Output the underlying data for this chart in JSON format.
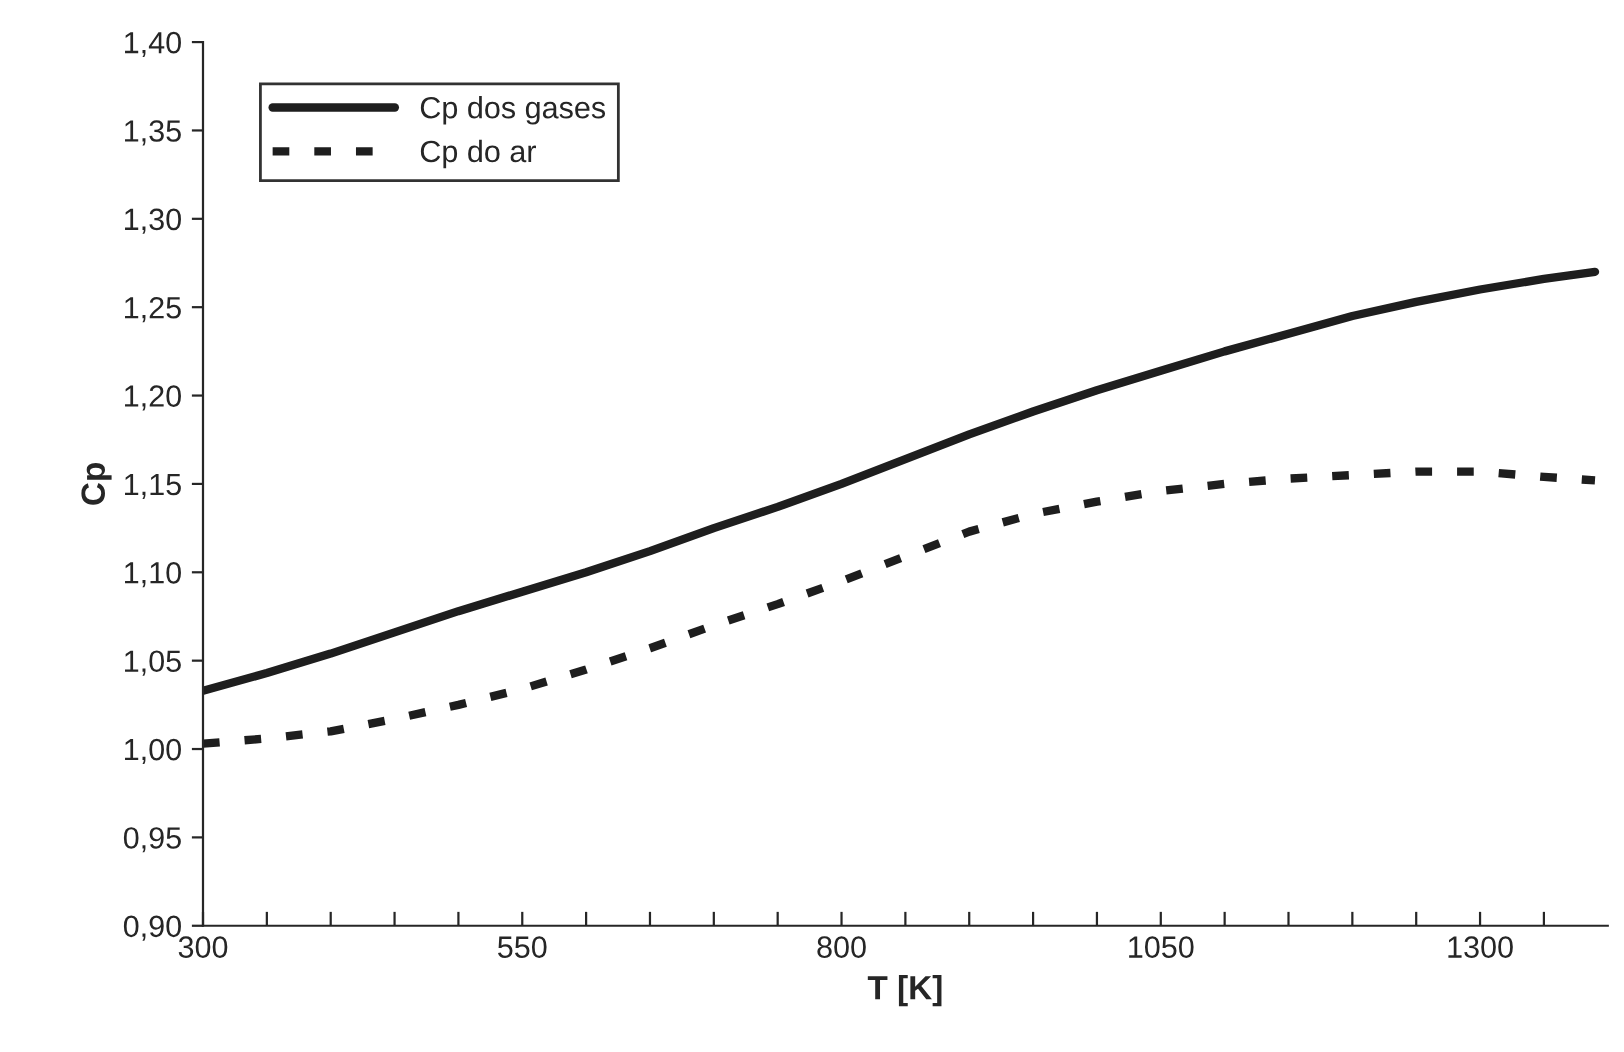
{
  "chart_data": {
    "type": "line",
    "xlabel": "T [K]",
    "ylabel": "Cp",
    "x": [
      300,
      350,
      400,
      450,
      500,
      550,
      600,
      650,
      700,
      750,
      800,
      850,
      900,
      950,
      1000,
      1050,
      1100,
      1150,
      1200,
      1250,
      1300,
      1350,
      1390
    ],
    "series": [
      {
        "name": "Cp dos gases",
        "color": "#1e1e1e",
        "line_style": "solid",
        "values": [
          1.033,
          1.043,
          1.054,
          1.066,
          1.078,
          1.089,
          1.1,
          1.112,
          1.125,
          1.137,
          1.15,
          1.164,
          1.178,
          1.191,
          1.203,
          1.214,
          1.225,
          1.235,
          1.245,
          1.253,
          1.26,
          1.266,
          1.27
        ]
      },
      {
        "name": "Cp do ar",
        "color": "#1e1e1e",
        "line_style": "dashed",
        "values": [
          1.003,
          1.006,
          1.01,
          1.017,
          1.025,
          1.034,
          1.045,
          1.057,
          1.07,
          1.082,
          1.095,
          1.109,
          1.123,
          1.133,
          1.14,
          1.146,
          1.15,
          1.153,
          1.155,
          1.157,
          1.157,
          1.154,
          1.152
        ]
      }
    ],
    "xlim": [
      300,
      1400
    ],
    "xticks": [
      300,
      {
        "value": 350,
        "label": null
      },
      {
        "value": 400,
        "label": null
      },
      {
        "value": 450,
        "label": null
      },
      {
        "value": 500,
        "label": null
      },
      550,
      {
        "value": 600,
        "label": null
      },
      {
        "value": 650,
        "label": null
      },
      {
        "value": 700,
        "label": null
      },
      {
        "value": 750,
        "label": null
      },
      800,
      {
        "value": 850,
        "label": null
      },
      {
        "value": 900,
        "label": null
      },
      {
        "value": 950,
        "label": null
      },
      {
        "value": 1000,
        "label": null
      },
      1050,
      {
        "value": 1100,
        "label": null
      },
      {
        "value": 1150,
        "label": null
      },
      {
        "value": 1200,
        "label": null
      },
      {
        "value": 1250,
        "label": null
      },
      1300,
      {
        "value": 1350,
        "label": null
      }
    ],
    "ylim": [
      0.9,
      1.4
    ],
    "yticks": [
      {
        "value": 0.9,
        "label": "0,90"
      },
      {
        "value": 0.95,
        "label": "0,95"
      },
      {
        "value": 1.0,
        "label": "1,00"
      },
      {
        "value": 1.05,
        "label": "1,05"
      },
      {
        "value": 1.1,
        "label": "1,10"
      },
      {
        "value": 1.15,
        "label": "1,15"
      },
      {
        "value": 1.2,
        "label": "1,20"
      },
      {
        "value": 1.25,
        "label": "1,25"
      },
      {
        "value": 1.3,
        "label": "1,30"
      },
      {
        "value": 1.35,
        "label": "1,35"
      },
      {
        "value": 1.4,
        "label": "1,40"
      }
    ],
    "grid": false,
    "legend": "top left",
    "marker": "none"
  }
}
